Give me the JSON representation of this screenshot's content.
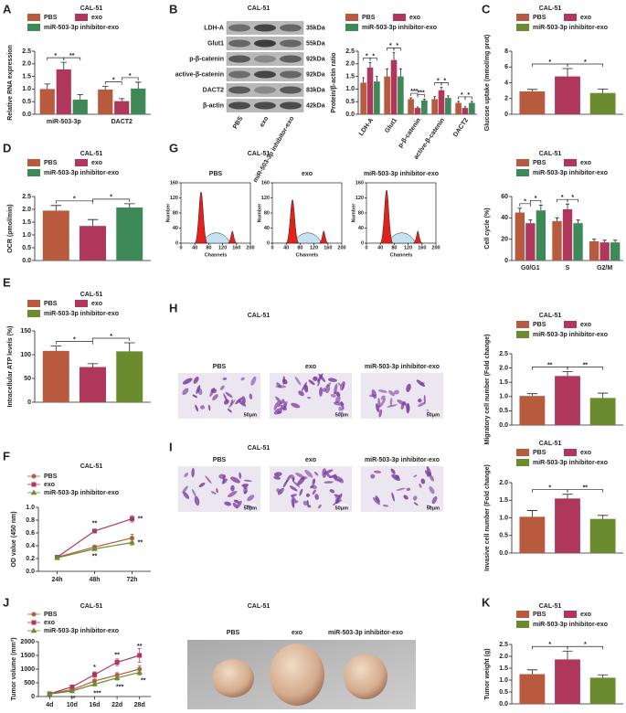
{
  "chart_data": [
    {
      "panel": "A",
      "type": "bar",
      "title": "CAL-51",
      "categories": [
        "miR-503-3p",
        "DACT2"
      ],
      "series": [
        {
          "name": "PBS",
          "color": "#b75a3d",
          "values": [
            1.0,
            0.98
          ],
          "errors": [
            0.2,
            0.12
          ]
        },
        {
          "name": "exo",
          "color": "#b0375c",
          "values": [
            1.78,
            0.52
          ],
          "errors": [
            0.28,
            0.1
          ]
        },
        {
          "name": "miR-503-3p inhibitor-exo",
          "color": "#3d8a58",
          "values": [
            0.58,
            1.02
          ],
          "errors": [
            0.2,
            0.25
          ]
        }
      ],
      "ylabel": "Relative RNA expression",
      "ylim": [
        0,
        2.5
      ],
      "yticks": [
        {
          "value": 0,
          "label": "0.0"
        },
        0.5,
        {
          "value": 1,
          "label": "1.0"
        },
        1.5,
        {
          "value": 2,
          "label": "2.0"
        },
        2.5
      ],
      "annotations": [
        "*",
        "**",
        "*",
        "*"
      ]
    },
    {
      "panel": "B",
      "type": "bar",
      "title": "CAL-51",
      "categories": [
        "LDH-A",
        "Glut1",
        "p-β-catenin",
        "active-β-catenin",
        "DACT2"
      ],
      "series": [
        {
          "name": "PBS",
          "color": "#b75a3d",
          "values": [
            1.25,
            1.5,
            0.6,
            0.6,
            0.45
          ],
          "errors": [
            0.2,
            0.3,
            0.05,
            0.1,
            0.06
          ]
        },
        {
          "name": "exo",
          "color": "#b0375c",
          "values": [
            1.85,
            2.15,
            0.25,
            0.95,
            0.25
          ],
          "errors": [
            0.2,
            0.3,
            0.04,
            0.12,
            0.05
          ]
        },
        {
          "name": "miR-503-3p inhibitor-exo",
          "color": "#3d8a58",
          "values": [
            1.3,
            1.5,
            0.55,
            0.65,
            0.45
          ],
          "errors": [
            0.2,
            0.3,
            0.05,
            0.08,
            0.06
          ]
        }
      ],
      "ylabel": "Protein/β-actin ratio",
      "ylim": [
        0,
        2.5
      ],
      "yticks": [
        {
          "value": 0,
          "label": "0.0"
        },
        0.5,
        {
          "value": 1,
          "label": "1.0"
        },
        1.5,
        {
          "value": 2,
          "label": "2.0"
        },
        2.5
      ],
      "annotations": [
        "*",
        "*",
        "*",
        "*",
        "***",
        "***",
        "*",
        "*",
        "*",
        "*"
      ],
      "blot": {
        "proteins": [
          "LDH-A",
          "Glut1",
          "p-β-catenin",
          "active-β-catenin",
          "DACT2",
          "β-actin"
        ],
        "sizes": [
          "35kDa",
          "55kDa",
          "92kDa",
          "92kDa",
          "83kDa",
          "42kDa"
        ],
        "lanes": [
          "PBS",
          "exo",
          "miR-503-3p inhibitor-exo"
        ]
      }
    },
    {
      "panel": "C",
      "type": "bar",
      "title": "CAL-51",
      "categories": [
        null
      ],
      "series": [
        {
          "name": "PBS",
          "color": "#b75a3d",
          "values": [
            2.9
          ],
          "errors": [
            0.25
          ]
        },
        {
          "name": "exo",
          "color": "#b0375c",
          "values": [
            4.8
          ],
          "errors": [
            1.0
          ]
        },
        {
          "name": "miR-503-3p inhibitor-exo",
          "color": "#6b8c2e",
          "values": [
            2.7
          ],
          "errors": [
            0.5
          ]
        }
      ],
      "ylabel": "Glucose uptake (mmol/mg prot)",
      "ylim": [
        0,
        8
      ],
      "yticks": [
        0,
        2,
        4,
        6,
        8
      ],
      "annotations": [
        "*",
        "*"
      ]
    },
    {
      "panel": "D",
      "type": "bar",
      "title": "CAL-51",
      "categories": [
        null
      ],
      "series": [
        {
          "name": "PBS",
          "color": "#b75a3d",
          "values": [
            1.95
          ],
          "errors": [
            0.2
          ]
        },
        {
          "name": "exo",
          "color": "#b0375c",
          "values": [
            1.35
          ],
          "errors": [
            0.25
          ]
        },
        {
          "name": "miR-503-3p inhibitor-exo",
          "color": "#3d8a58",
          "values": [
            2.07
          ],
          "errors": [
            0.15
          ]
        }
      ],
      "ylabel": "OCR (pmol/min)",
      "ylim": [
        0,
        2.5
      ],
      "yticks": [
        {
          "value": 0,
          "label": "0.0"
        },
        0.5,
        {
          "value": 1,
          "label": "1.0"
        },
        1.5,
        {
          "value": 2,
          "label": "2.0"
        },
        2.5
      ],
      "annotations": [
        "*",
        "*"
      ]
    },
    {
      "panel": "G",
      "type": "bar",
      "title": "CAL-51",
      "categories": [
        "G0/G1",
        "S",
        "G2/M"
      ],
      "series": [
        {
          "name": "PBS",
          "color": "#b75a3d",
          "values": [
            45,
            37,
            18
          ],
          "errors": [
            4,
            3,
            2
          ]
        },
        {
          "name": "exo",
          "color": "#b0375c",
          "values": [
            35,
            48,
            17
          ],
          "errors": [
            3,
            5,
            2
          ]
        },
        {
          "name": "miR-503-3p inhibitor-exo",
          "color": "#3d8a58",
          "values": [
            47,
            35,
            17
          ],
          "errors": [
            5,
            3,
            2
          ]
        }
      ],
      "ylabel": "Cell cycle (%)",
      "ylim": [
        0,
        60
      ],
      "yticks": [
        0,
        20,
        40,
        60
      ],
      "annotations": [
        "*",
        "*",
        "*",
        "*"
      ],
      "image": {
        "title": "CAL-51",
        "plots": [
          "PBS",
          "exo",
          "miR-503-3p inhibitor-exo"
        ],
        "xlabel": "Channels",
        "ylabel": "Number",
        "xlim": [
          0,
          200
        ],
        "xticks": [
          0,
          40,
          80,
          120,
          160,
          200
        ],
        "ylim": [
          0,
          160
        ],
        "yticks": [
          0,
          40,
          80,
          120,
          160
        ]
      }
    },
    {
      "panel": "E",
      "type": "bar",
      "title": "CAL-51",
      "categories": [
        null
      ],
      "series": [
        {
          "name": "PBS",
          "color": "#b75a3d",
          "values": [
            108
          ],
          "errors": [
            10
          ]
        },
        {
          "name": "exo",
          "color": "#b0375c",
          "values": [
            74
          ],
          "errors": [
            7
          ]
        },
        {
          "name": "miR-503-3p inhibitor-exo",
          "color": "#6b8c2e",
          "values": [
            107
          ],
          "errors": [
            18
          ]
        }
      ],
      "ylabel": "Intracellular ATP levels (%)",
      "ylim": [
        0,
        150
      ],
      "yticks": [
        0,
        50,
        100,
        150
      ],
      "annotations": [
        "*",
        "*"
      ]
    },
    {
      "panel": "H",
      "type": "bar",
      "title": "CAL-51",
      "categories": [
        null
      ],
      "series": [
        {
          "name": "PBS",
          "color": "#b75a3d",
          "values": [
            1.02
          ],
          "errors": [
            0.08
          ]
        },
        {
          "name": "exo",
          "color": "#b0375c",
          "values": [
            1.72
          ],
          "errors": [
            0.15
          ]
        },
        {
          "name": "miR-503-3p inhibitor-exo",
          "color": "#6b8c2e",
          "values": [
            0.95
          ],
          "errors": [
            0.17
          ]
        }
      ],
      "ylabel": "Migratory cell number (Fold change)",
      "ylim": [
        0,
        2.5
      ],
      "yticks": [
        {
          "value": 0,
          "label": "0.0"
        },
        0.5,
        {
          "value": 1,
          "label": "1.0"
        },
        1.5,
        {
          "value": 2,
          "label": "2.0"
        },
        2.5
      ],
      "annotations": [
        "**",
        "**"
      ],
      "image": {
        "title": "CAL-51",
        "labels": [
          "PBS",
          "exo",
          "miR-503-3p inhibitor-exo"
        ],
        "scale": [
          "50μm",
          "50μm",
          "50μm"
        ]
      }
    },
    {
      "panel": "F",
      "type": "line",
      "title": "CAL-51",
      "categories": [
        "24h",
        "48h",
        "72h"
      ],
      "series": [
        {
          "name": "PBS",
          "color": "#b75a3d",
          "values": [
            0.22,
            0.38,
            0.52
          ],
          "errors": [
            0.02,
            0.03,
            0.06
          ]
        },
        {
          "name": "exo",
          "color": "#b0375c",
          "values": [
            0.22,
            0.63,
            0.82
          ],
          "errors": [
            0.02,
            0.03,
            0.05
          ]
        },
        {
          "name": "miR-503-3p inhibitor-exo",
          "color": "#6b8c2e",
          "values": [
            0.21,
            0.35,
            0.45
          ],
          "errors": [
            0.02,
            0.02,
            0.04
          ]
        }
      ],
      "ylabel": "OD value (450 nm)",
      "ylim": [
        0,
        1.0
      ],
      "yticks": [
        {
          "value": 0,
          "label": "0.0"
        },
        0.2,
        0.4,
        0.6,
        0.8,
        {
          "value": 1,
          "label": "1.0"
        }
      ],
      "annotations": [
        "**",
        "**",
        "**",
        "**"
      ]
    },
    {
      "panel": "I",
      "type": "bar",
      "title": "CAL-51",
      "categories": [
        null
      ],
      "series": [
        {
          "name": "PBS",
          "color": "#b75a3d",
          "values": [
            1.03
          ],
          "errors": [
            0.18
          ]
        },
        {
          "name": "exo",
          "color": "#b0375c",
          "values": [
            1.55
          ],
          "errors": [
            0.12
          ]
        },
        {
          "name": "miR-503-3p inhibitor-exo",
          "color": "#6b8c2e",
          "values": [
            0.97
          ],
          "errors": [
            0.1
          ]
        }
      ],
      "ylabel": "Invasive cell number (Fold change)",
      "ylim": [
        0,
        2.0
      ],
      "yticks": [
        {
          "value": 0,
          "label": "0.0"
        },
        0.5,
        {
          "value": 1,
          "label": "1.0"
        },
        1.5,
        {
          "value": 2,
          "label": "2.0"
        }
      ],
      "annotations": [
        "*",
        "**"
      ],
      "image": {
        "title": "CAL-51",
        "labels": [
          "PBS",
          "exo",
          "miR-503-3p inhibitor-exo"
        ],
        "scale": [
          "50μm",
          "50μm",
          "50μm"
        ]
      }
    },
    {
      "panel": "J",
      "type": "line",
      "title": "CAL-51",
      "categories": [
        "4d",
        "10d",
        "16d",
        "22d",
        "28d"
      ],
      "series": [
        {
          "name": "PBS",
          "color": "#b75a3d",
          "values": [
            100,
            250,
            570,
            780,
            1000
          ],
          "errors": [
            10,
            40,
            70,
            90,
            130
          ]
        },
        {
          "name": "exo",
          "color": "#b0375c",
          "values": [
            100,
            350,
            800,
            1250,
            1500
          ],
          "errors": [
            10,
            50,
            100,
            120,
            250
          ]
        },
        {
          "name": "miR-503-3p inhibitor-exo",
          "color": "#6b8c2e",
          "values": [
            90,
            200,
            450,
            680,
            880
          ],
          "errors": [
            10,
            30,
            60,
            80,
            100
          ]
        }
      ],
      "ylabel": "Tumor volume (mm³)",
      "ylim": [
        0,
        2000
      ],
      "yticks": [
        0,
        500,
        1000,
        1500,
        2000
      ],
      "annotations": [
        "*",
        "**",
        "**",
        "**",
        "***",
        "***",
        "**"
      ]
    },
    {
      "panel": "K",
      "type": "bar",
      "title": "CAL-51",
      "categories": [
        null
      ],
      "series": [
        {
          "name": "PBS",
          "color": "#b75a3d",
          "values": [
            1.25
          ],
          "errors": [
            0.18
          ]
        },
        {
          "name": "exo",
          "color": "#b0375c",
          "values": [
            1.87
          ],
          "errors": [
            0.35
          ]
        },
        {
          "name": "miR-503-3p inhibitor-exo",
          "color": "#6b8c2e",
          "values": [
            1.1
          ],
          "errors": [
            0.12
          ]
        }
      ],
      "ylabel": "Tumor weight (g)",
      "ylim": [
        0,
        2.5
      ],
      "yticks": [
        {
          "value": 0,
          "label": "0.0"
        },
        0.5,
        {
          "value": 1,
          "label": "1.0"
        },
        1.5,
        {
          "value": 2,
          "label": "2.0"
        },
        2.5
      ],
      "annotations": [
        "*",
        "*"
      ],
      "image": {
        "title": "CAL-51",
        "labels": [
          "PBS",
          "exo",
          "miR-503-3p inhibitor-exo"
        ]
      }
    }
  ]
}
